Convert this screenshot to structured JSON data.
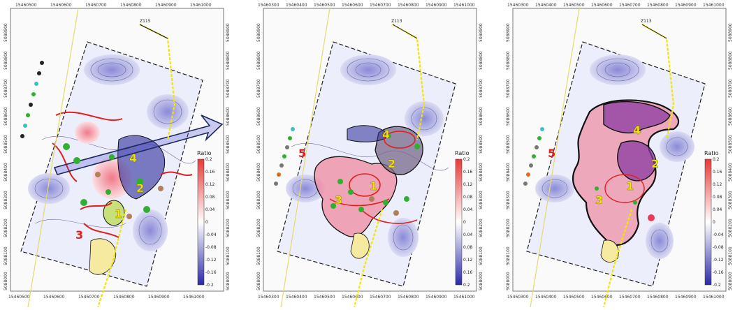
{
  "palette": {
    "ratio_high": "#e83a3a",
    "ratio_low": "#2a2aa8",
    "boundary_red": "#e02020",
    "boundary_black": "#111111",
    "well_trace": "#f2e600",
    "zone_label_yellow": "#f2e600",
    "purple_fill": "#8a3aa0",
    "pink_fill": "#f08aa0"
  },
  "panels": [
    {
      "id": "panel-1",
      "x_ticks": [
        "15460500",
        "15460600",
        "15460700",
        "15460800",
        "15460900",
        "15461000"
      ],
      "x_ticks_bottom": [
        "15460500",
        "15460600",
        "15460700",
        "15460800",
        "15460900",
        "15461000"
      ],
      "y_ticks_left": [
        "5088900",
        "5088800",
        "5088700",
        "5088600",
        "5088500",
        "5088400",
        "5088300",
        "5088200",
        "5088100",
        "5088000"
      ],
      "y_ticks_right": [
        "5088900",
        "5088800",
        "5088700",
        "5088600",
        "5088500",
        "5088400",
        "5088300",
        "5088200",
        "5088100",
        "5088000"
      ],
      "well_label": "Z115",
      "colorbar": {
        "title": "Ratio",
        "labels": [
          "0.2",
          "0.16",
          "0.12",
          "0.08",
          "0.04",
          "0",
          "-0.04",
          "-0.08",
          "-0.12",
          "-0.16",
          "-0.2"
        ]
      },
      "zones": [
        {
          "label": "4",
          "color": "yellow"
        },
        {
          "label": "2",
          "color": "yellow"
        },
        {
          "label": "1",
          "color": "yellow"
        },
        {
          "label": "3",
          "color": "red"
        }
      ]
    },
    {
      "id": "panel-2",
      "x_ticks": [
        "15460300",
        "15460400",
        "15460500",
        "15460600",
        "15460700",
        "15460800",
        "15460900",
        "15461000"
      ],
      "x_ticks_bottom": [
        "15460300",
        "15460400",
        "15460500",
        "15460600",
        "15460700",
        "15460800",
        "15460900",
        "15461000"
      ],
      "y_ticks_left": [
        "5088900",
        "5088800",
        "5088700",
        "5088600",
        "5088500",
        "5088400",
        "5088300",
        "5088200",
        "5088100",
        "5088000"
      ],
      "y_ticks_right": [
        "5088900",
        "5088800",
        "5088700",
        "5088600",
        "5088500",
        "5088400",
        "5088300",
        "5088200",
        "5088100",
        "5088000"
      ],
      "well_label": "Z113",
      "colorbar": {
        "title": "Ratio",
        "labels": [
          "0.2",
          "0.16",
          "0.12",
          "0.08",
          "0.04",
          "0",
          "0.04",
          "0.08",
          "0.12",
          "0.16",
          "0.2"
        ]
      },
      "zones": [
        {
          "label": "5",
          "color": "red"
        },
        {
          "label": "4",
          "color": "yellow"
        },
        {
          "label": "2",
          "color": "yellow"
        },
        {
          "label": "1",
          "color": "yellow"
        },
        {
          "label": "3",
          "color": "yellow"
        }
      ]
    },
    {
      "id": "panel-3",
      "x_ticks": [
        "15460300",
        "15460400",
        "15460500",
        "15460600",
        "15460700",
        "15460800",
        "15460900",
        "15461000"
      ],
      "x_ticks_bottom": [
        "15460300",
        "15460400",
        "15460500",
        "15460600",
        "15460700",
        "15460800",
        "15460900",
        "15461000"
      ],
      "y_ticks_left": [
        "5088900",
        "5088800",
        "5088700",
        "5088600",
        "5088500",
        "5088400",
        "5088300",
        "5088200",
        "5088100",
        "5088000"
      ],
      "y_ticks_right": [
        "5088900",
        "5088800",
        "5088700",
        "5088600",
        "5088500",
        "5088400",
        "5088300",
        "5088200",
        "5088100",
        "5088000"
      ],
      "well_label": "Z113",
      "colorbar": {
        "title": "Ratio",
        "labels": [
          "0.2",
          "0.16",
          "0.12",
          "0.08",
          "0.04",
          "0",
          "-0.04",
          "-0.08",
          "-0.12",
          "-0.16",
          "-0.2"
        ]
      },
      "zones": [
        {
          "label": "5",
          "color": "red"
        },
        {
          "label": "4",
          "color": "yellow"
        },
        {
          "label": "2",
          "color": "yellow"
        },
        {
          "label": "1",
          "color": "yellow"
        },
        {
          "label": "3",
          "color": "yellow"
        }
      ]
    }
  ]
}
